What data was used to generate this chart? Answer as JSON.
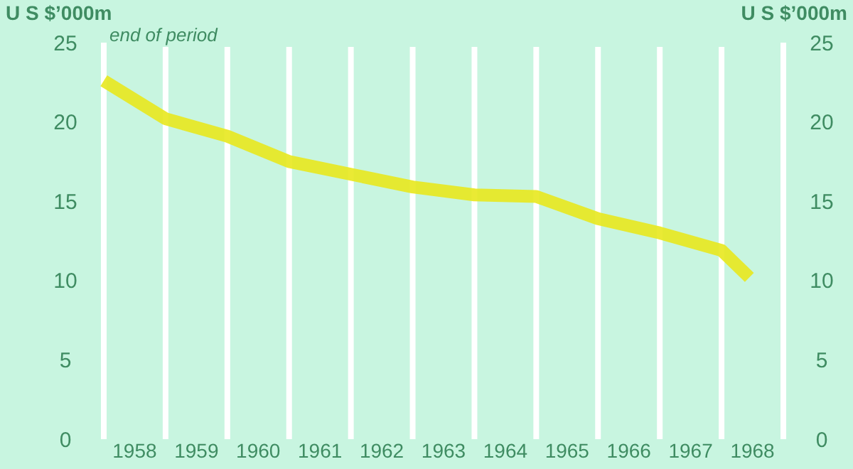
{
  "chart_data": {
    "type": "line",
    "ylabel": "U S $’000m",
    "y2label": "U S $’000m",
    "subtitle": "end of period",
    "x": [
      1958,
      1959,
      1960,
      1961,
      1962,
      1963,
      1964,
      1965,
      1966,
      1967,
      1968,
      1968.45
    ],
    "series": [
      {
        "color": "#e8e81e",
        "values": [
          22.6,
          20.2,
          19.1,
          17.5,
          16.7,
          15.9,
          15.4,
          15.3,
          13.9,
          13.0,
          11.9,
          10.2
        ]
      }
    ],
    "xlim": [
      1958,
      1969
    ],
    "xticks": [
      {
        "value": 1958.5,
        "label": "1958"
      },
      {
        "value": 1959.5,
        "label": "1959"
      },
      {
        "value": 1960.5,
        "label": "1960"
      },
      {
        "value": 1961.5,
        "label": "1961"
      },
      {
        "value": 1962.5,
        "label": "1962"
      },
      {
        "value": 1963.5,
        "label": "1963"
      },
      {
        "value": 1964.5,
        "label": "1964"
      },
      {
        "value": 1965.5,
        "label": "1965"
      },
      {
        "value": 1966.5,
        "label": "1966"
      },
      {
        "value": 1967.5,
        "label": "1967"
      },
      {
        "value": 1968.5,
        "label": "1968"
      },
      {
        "value": 1959,
        "label": null
      },
      {
        "value": 1960,
        "label": null
      },
      {
        "value": 1961,
        "label": null
      },
      {
        "value": 1962,
        "label": null
      },
      {
        "value": 1963,
        "label": null
      },
      {
        "value": 1964,
        "label": null
      },
      {
        "value": 1965,
        "label": null
      },
      {
        "value": 1966,
        "label": null
      },
      {
        "value": 1967,
        "label": null
      },
      {
        "value": 1968,
        "label": null
      }
    ],
    "ylim": [
      0,
      25
    ],
    "yticks": [
      0,
      5,
      10,
      15,
      20,
      25
    ],
    "y2lim": [
      0,
      25
    ],
    "y2ticks": [
      0,
      5,
      10,
      15,
      20,
      25
    ],
    "grid": "x",
    "marker": "none",
    "line_style": "solid"
  }
}
